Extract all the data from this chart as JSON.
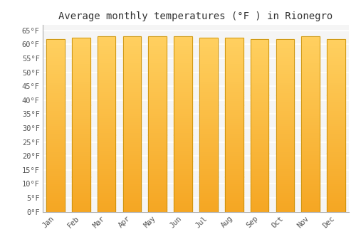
{
  "title": "Average monthly temperatures (°F ) in Rionegro",
  "months": [
    "Jan",
    "Feb",
    "Mar",
    "Apr",
    "May",
    "Jun",
    "Jul",
    "Aug",
    "Sep",
    "Oct",
    "Nov",
    "Dec"
  ],
  "values": [
    62,
    62.5,
    63,
    63,
    63,
    63,
    62.5,
    62.5,
    62,
    62,
    63,
    62
  ],
  "ylim": [
    0,
    67
  ],
  "yticks": [
    0,
    5,
    10,
    15,
    20,
    25,
    30,
    35,
    40,
    45,
    50,
    55,
    60,
    65
  ],
  "ytick_labels": [
    "0°F",
    "5°F",
    "10°F",
    "15°F",
    "20°F",
    "25°F",
    "30°F",
    "35°F",
    "40°F",
    "45°F",
    "50°F",
    "55°F",
    "60°F",
    "65°F"
  ],
  "bar_color_bottom": "#F5A623",
  "bar_color_top": "#FFD060",
  "bar_edge_color": "#C8910A",
  "background_color": "#ffffff",
  "plot_bg_color": "#f5f5f5",
  "grid_color": "#ffffff",
  "title_fontsize": 10,
  "tick_fontsize": 7.5,
  "title_font": "monospace",
  "tick_font": "monospace",
  "bar_width": 0.72
}
